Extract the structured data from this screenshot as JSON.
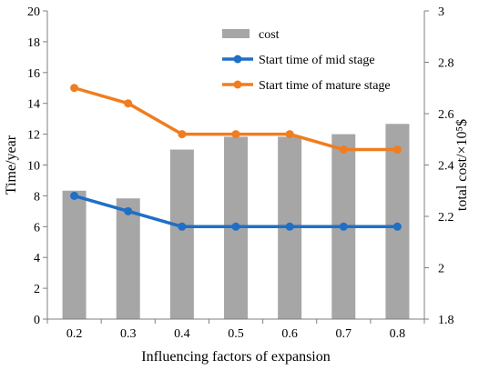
{
  "chart_data": {
    "type": "bar+line",
    "x_title": "Influencing factors of expansion",
    "y_left_title": "Time/year",
    "y_right_title": "total cost/×10⁵$",
    "categories": [
      "0.2",
      "0.3",
      "0.4",
      "0.5",
      "0.6",
      "0.7",
      "0.8"
    ],
    "y_left_range": [
      0,
      20
    ],
    "y_left_ticks": [
      "0",
      "2",
      "4",
      "6",
      "8",
      "10",
      "12",
      "14",
      "16",
      "18",
      "20"
    ],
    "y_right_range": [
      1.8,
      3.0
    ],
    "y_right_ticks": [
      "1.8",
      "2",
      "2.2",
      "2.4",
      "2.6",
      "2.8",
      "3"
    ],
    "grid": false,
    "legend_position": "top-right",
    "series": [
      {
        "name": "cost",
        "kind": "bar",
        "axis": "right",
        "color": "#a6a6a6",
        "values": [
          2.3,
          2.27,
          2.46,
          2.51,
          2.51,
          2.52,
          2.56
        ]
      },
      {
        "name": "Start time of mid stage",
        "kind": "line",
        "axis": "left",
        "color": "#1f6fc5",
        "values": [
          8,
          7,
          6,
          6,
          6,
          6,
          6
        ]
      },
      {
        "name": "Start time of mature stage",
        "kind": "line",
        "axis": "left",
        "color": "#f07d1f",
        "values": [
          15,
          14,
          12,
          12,
          12,
          11,
          11
        ]
      }
    ]
  }
}
